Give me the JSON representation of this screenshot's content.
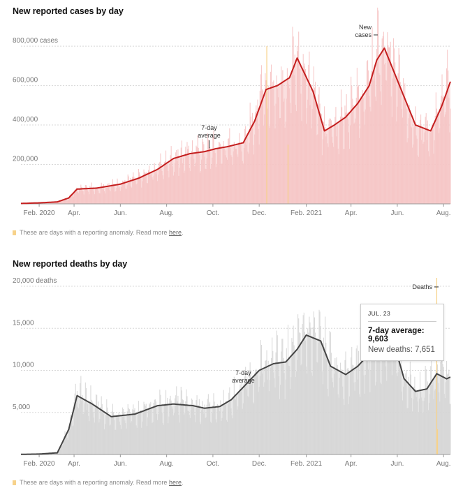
{
  "cases_chart": {
    "title": "New reported cases by day",
    "ytick_labels": [
      "800,000 cases",
      "600,000",
      "400,000",
      "200,000"
    ],
    "yticks": [
      800000,
      600000,
      400000,
      200000
    ],
    "annotation_avg": [
      "7-day",
      "average"
    ],
    "annotation_series": [
      "New",
      "cases"
    ],
    "note_text": "These are days with a reporting anomaly. Read more ",
    "note_link": "here",
    "note_end": "."
  },
  "deaths_chart": {
    "title": "New reported deaths by day",
    "ytick_labels": [
      "20,000 deaths",
      "15,000",
      "10,000",
      "5,000"
    ],
    "yticks": [
      20000,
      15000,
      10000,
      5000
    ],
    "annotation_avg": [
      "7-day",
      "average"
    ],
    "annotation_series": "Deaths",
    "note_text": "These are days with a reporting anomaly. Read more ",
    "note_link": "here",
    "note_end": "."
  },
  "tooltip": {
    "date": "JUL. 23",
    "avg_label": "7-day average: 9,603",
    "new_label": "New deaths: 7,651"
  },
  "colors": {
    "cases_line": "#c41e1e",
    "cases_bar": "#f6c4c4",
    "deaths_line": "#444444",
    "deaths_bar": "#d6d6d6",
    "anomaly": "#f7d28a",
    "grid": "#d8d8d8"
  },
  "chart_data": [
    {
      "type": "area",
      "title": "New reported cases by day",
      "x": [
        "2020-01-22",
        "2020-02-15",
        "2020-03-10",
        "2020-03-25",
        "2020-04-05",
        "2020-05-01",
        "2020-06-01",
        "2020-06-25",
        "2020-07-20",
        "2020-08-10",
        "2020-09-01",
        "2020-09-20",
        "2020-10-05",
        "2020-10-20",
        "2020-11-10",
        "2020-11-25",
        "2020-12-10",
        "2020-12-25",
        "2021-01-10",
        "2021-01-20",
        "2021-02-10",
        "2021-02-25",
        "2021-03-10",
        "2021-03-25",
        "2021-04-10",
        "2021-04-25",
        "2021-05-05",
        "2021-05-15",
        "2021-06-05",
        "2021-06-25",
        "2021-07-15",
        "2021-07-30",
        "2021-08-10"
      ],
      "series": [
        {
          "name": "7-day average",
          "values": [
            2000,
            5000,
            10000,
            30000,
            75000,
            80000,
            100000,
            130000,
            175000,
            230000,
            255000,
            265000,
            280000,
            290000,
            310000,
            420000,
            580000,
            600000,
            640000,
            740000,
            570000,
            370000,
            400000,
            440000,
            510000,
            600000,
            730000,
            790000,
            590000,
            400000,
            370000,
            500000,
            620000
          ]
        }
      ],
      "xtick_labels": [
        "Feb. 2020",
        "Apr.",
        "Jun.",
        "Aug.",
        "Oct.",
        "Dec.",
        "Feb. 2021",
        "Apr.",
        "Jun.",
        "Aug."
      ],
      "xlim": [
        "2020-01-22",
        "2021-08-10"
      ],
      "ylim": [
        0,
        850000
      ],
      "grid": true
    },
    {
      "type": "area",
      "title": "New reported deaths by day",
      "x": [
        "2020-01-22",
        "2020-02-15",
        "2020-03-10",
        "2020-03-25",
        "2020-04-05",
        "2020-04-25",
        "2020-05-20",
        "2020-06-20",
        "2020-07-20",
        "2020-08-10",
        "2020-09-05",
        "2020-09-20",
        "2020-10-10",
        "2020-10-25",
        "2020-11-10",
        "2020-12-01",
        "2020-12-20",
        "2021-01-05",
        "2021-01-20",
        "2021-02-01",
        "2021-02-20",
        "2021-03-05",
        "2021-03-25",
        "2021-04-10",
        "2021-04-25",
        "2021-05-10",
        "2021-05-25",
        "2021-06-10",
        "2021-06-25",
        "2021-07-10",
        "2021-07-23",
        "2021-08-05",
        "2021-08-10"
      ],
      "series": [
        {
          "name": "7-day average",
          "values": [
            20,
            50,
            200,
            3000,
            7000,
            6000,
            4500,
            4800,
            5800,
            6000,
            5800,
            5500,
            5700,
            6500,
            8000,
            10000,
            10800,
            11000,
            12500,
            14200,
            13500,
            10500,
            9500,
            10500,
            12000,
            13800,
            14000,
            9000,
            7500,
            7800,
            9603,
            9000,
            9200
          ]
        }
      ],
      "xtick_labels": [
        "Feb. 2020",
        "Apr.",
        "Jun.",
        "Aug.",
        "Oct.",
        "Dec.",
        "Feb. 2021",
        "Apr.",
        "Jun.",
        "Aug."
      ],
      "xlim": [
        "2020-01-22",
        "2021-08-10"
      ],
      "ylim": [
        0,
        21000
      ],
      "grid": true
    }
  ]
}
